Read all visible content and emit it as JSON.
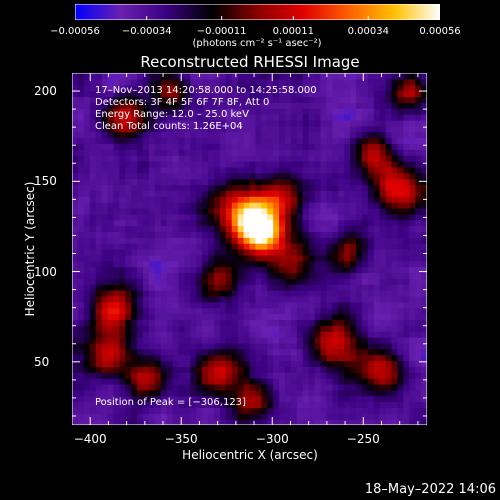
{
  "chart_data": {
    "type": "heatmap",
    "title": "Reconstructed RHESSI Image",
    "xlabel": "Heliocentric X (arcsec)",
    "ylabel": "Heliocentric Y (arcsec)",
    "xlim": [
      -410,
      -215
    ],
    "ylim": [
      15,
      210
    ],
    "xticks": [
      -400,
      -350,
      -300,
      -250
    ],
    "xtick_labels": [
      "−400",
      "−350",
      "−300",
      "−250"
    ],
    "yticks": [
      50,
      100,
      150,
      200
    ],
    "ytick_labels": [
      "50",
      "100",
      "150",
      "200"
    ],
    "colorbar": {
      "ticks": [
        -0.00056,
        -0.00034,
        -0.00011,
        0.00011,
        0.00034,
        0.00056
      ],
      "tick_labels": [
        "−0.00056",
        "−0.00034",
        "−0.00011",
        "0.00011",
        "0.00034",
        "0.00056"
      ],
      "units": "(photons cm⁻² s⁻¹ asec⁻²)",
      "range": [
        -0.00056,
        0.00056
      ],
      "colors": [
        "#0000ff",
        "#6a20b0",
        "#3a0080",
        "#000000",
        "#8a0000",
        "#e00000",
        "#ff6000",
        "#ffc000",
        "#ffffff"
      ]
    },
    "info_lines": [
      "17–Nov–2013 14:20:58.000 to 14:25:58.000",
      "Detectors: 3F 4F 5F 6F 7F 8F, Att 0",
      "Energy Range: 12.0 – 25.0 keV",
      "Clean    Total counts: 1.26E+04"
    ],
    "peak_text": "Position of Peak = [−306,123]",
    "peak_position": [
      -306,
      123
    ],
    "sources": [
      {
        "x": -306,
        "y": 123,
        "intensity": 1.0,
        "sigma": 9
      },
      {
        "x": -318,
        "y": 132,
        "intensity": 0.65,
        "sigma": 11
      },
      {
        "x": -290,
        "y": 105,
        "intensity": 0.45,
        "sigma": 10
      },
      {
        "x": -295,
        "y": 142,
        "intensity": 0.45,
        "sigma": 9
      },
      {
        "x": -380,
        "y": 185,
        "intensity": 0.6,
        "sigma": 8
      },
      {
        "x": -355,
        "y": 200,
        "intensity": 0.45,
        "sigma": 8
      },
      {
        "x": -385,
        "y": 80,
        "intensity": 0.55,
        "sigma": 9
      },
      {
        "x": -390,
        "y": 55,
        "intensity": 0.5,
        "sigma": 9
      },
      {
        "x": -370,
        "y": 40,
        "intensity": 0.45,
        "sigma": 8
      },
      {
        "x": -330,
        "y": 45,
        "intensity": 0.55,
        "sigma": 9
      },
      {
        "x": -310,
        "y": 30,
        "intensity": 0.45,
        "sigma": 8
      },
      {
        "x": -265,
        "y": 60,
        "intensity": 0.55,
        "sigma": 10
      },
      {
        "x": -240,
        "y": 45,
        "intensity": 0.45,
        "sigma": 9
      },
      {
        "x": -230,
        "y": 145,
        "intensity": 0.55,
        "sigma": 9
      },
      {
        "x": -245,
        "y": 165,
        "intensity": 0.45,
        "sigma": 8
      },
      {
        "x": -225,
        "y": 200,
        "intensity": 0.45,
        "sigma": 7
      },
      {
        "x": -330,
        "y": 95,
        "intensity": 0.35,
        "sigma": 8
      },
      {
        "x": -260,
        "y": 110,
        "intensity": 0.35,
        "sigma": 8
      }
    ]
  },
  "timestamp": "18–May–2022 14:06"
}
